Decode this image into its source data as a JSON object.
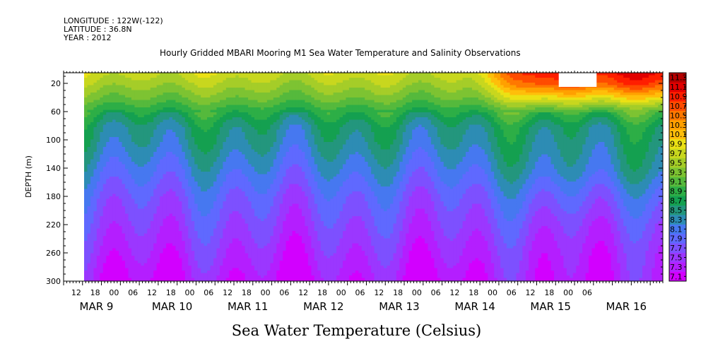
{
  "header": {
    "longitude": "LONGITUDE : 122W(-122)",
    "latitude": "LATITUDE : 36.8N",
    "year": "YEAR : 2012"
  },
  "chart_data": {
    "type": "heatmap",
    "title": "Hourly Gridded MBARI Mooring M1 Sea Water Temperature and Salinity Observations",
    "colorbar_title": "Sea Water Temperature (Celsius)",
    "ylabel": "DEPTH (m)",
    "y_ticks": [
      20,
      60,
      100,
      140,
      180,
      220,
      260,
      300
    ],
    "ylim": [
      300,
      5
    ],
    "x_hour_labels": [
      "12",
      "18",
      "00",
      "06",
      "12",
      "18",
      "00",
      "06",
      "12",
      "18",
      "00",
      "06",
      "12",
      "18",
      "00",
      "06",
      "12",
      "18",
      "00",
      "06",
      "12",
      "18",
      "00",
      "06",
      "12",
      "18",
      "00",
      "06"
    ],
    "x_date_labels": [
      "MAR  9",
      "MAR 10",
      "MAR 11",
      "MAR 12",
      "MAR 13",
      "MAR 14",
      "MAR 15",
      "MAR 16"
    ],
    "x_range_hours": [
      0,
      190
    ],
    "data_start_hour": 6.5,
    "no_data_box": {
      "start_hour": 157,
      "end_hour": 169,
      "depth_min": 5,
      "depth_max": 25
    },
    "color_levels": [
      7.1,
      7.3,
      7.5,
      7.7,
      7.9,
      8.1,
      8.3,
      8.5,
      8.7,
      8.9,
      9.1,
      9.3,
      9.5,
      9.7,
      9.9,
      10.1,
      10.3,
      10.5,
      10.7,
      10.9,
      11.1,
      11.3
    ],
    "colors": [
      "#d200ff",
      "#b41eff",
      "#9b37ff",
      "#7d50ff",
      "#5f69ff",
      "#4678f0",
      "#2d8cb4",
      "#23967d",
      "#14a050",
      "#2dae46",
      "#55b93c",
      "#7dc332",
      "#a5cd28",
      "#c8d71e",
      "#ebe114",
      "#ffbe0a",
      "#ffa000",
      "#ff7800",
      "#ff4b00",
      "#ff1e00",
      "#e10000",
      "#b40000"
    ],
    "approx_profile": {
      "depth_m": [
        5,
        20,
        40,
        60,
        80,
        100,
        140,
        180,
        220,
        260,
        300
      ],
      "temp_c": [
        9.8,
        9.6,
        9.3,
        8.9,
        8.6,
        8.5,
        8.2,
        7.9,
        7.7,
        7.5,
        7.3
      ],
      "late_period_surface_temp_c": [
        11.1,
        10.8,
        10.0,
        9.1,
        8.7,
        8.6,
        8.4,
        8.0,
        7.7,
        7.5,
        7.4
      ]
    }
  }
}
